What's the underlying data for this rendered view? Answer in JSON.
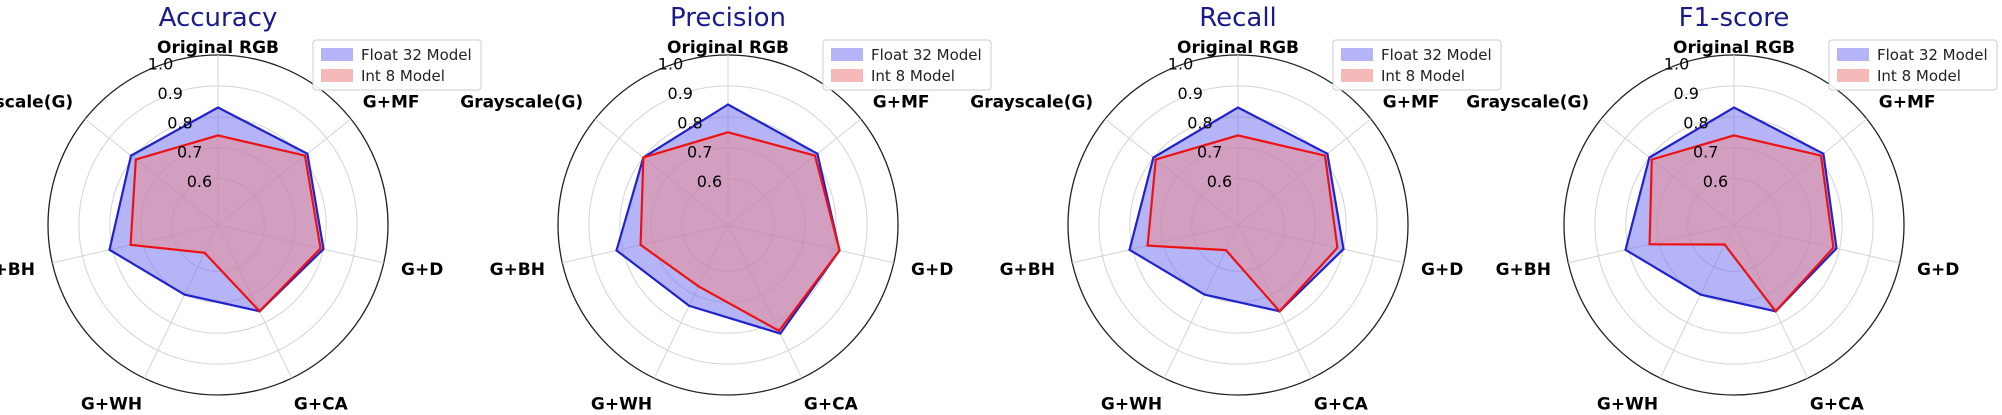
{
  "legend": {
    "float_label": "Float 32 Model",
    "int_label": "Int 8 Model"
  },
  "colors": {
    "float_line": "#2222cc",
    "float_fill": "#7777ee",
    "int_line": "#ee1111",
    "int_fill": "#f08a8a",
    "title": "#1a1a8c"
  },
  "chart_data": [
    {
      "type": "radar",
      "title": "Accuracy",
      "categories": [
        "Original RGB",
        "G+MF",
        "G+D",
        "G+CA",
        "G+WH",
        "G+BH",
        "Grayscale(G)"
      ],
      "rlim": [
        0.45,
        1.0
      ],
      "rticks": [
        "0.6",
        "0.7",
        "0.8",
        "0.9",
        "1.0"
      ],
      "grid": true,
      "series": [
        {
          "name": "Float 32 Model",
          "values": [
            0.83,
            0.82,
            0.8,
            0.76,
            0.7,
            0.81,
            0.81
          ]
        },
        {
          "name": "Int 8 Model",
          "values": [
            0.74,
            0.81,
            0.79,
            0.76,
            0.55,
            0.74,
            0.79
          ]
        }
      ]
    },
    {
      "type": "radar",
      "title": "Precision",
      "categories": [
        "Original RGB",
        "G+MF",
        "G+D",
        "G+CA",
        "G+WH",
        "G+BH",
        "Grayscale(G)"
      ],
      "rlim": [
        0.45,
        1.0
      ],
      "rticks": [
        "0.6",
        "0.7",
        "0.8",
        "0.9",
        "1.0"
      ],
      "grid": true,
      "series": [
        {
          "name": "Float 32 Model",
          "values": [
            0.84,
            0.82,
            0.82,
            0.84,
            0.74,
            0.82,
            0.8
          ]
        },
        {
          "name": "Int 8 Model",
          "values": [
            0.75,
            0.81,
            0.82,
            0.83,
            0.67,
            0.74,
            0.8
          ]
        }
      ]
    },
    {
      "type": "radar",
      "title": "Recall",
      "categories": [
        "Original RGB",
        "G+MF",
        "G+D",
        "G+CA",
        "G+WH",
        "G+BH",
        "Grayscale(G)"
      ],
      "rlim": [
        0.45,
        1.0
      ],
      "rticks": [
        "0.6",
        "0.7",
        "0.8",
        "0.9",
        "1.0"
      ],
      "grid": true,
      "series": [
        {
          "name": "Float 32 Model",
          "values": [
            0.83,
            0.82,
            0.8,
            0.76,
            0.7,
            0.81,
            0.8
          ]
        },
        {
          "name": "Int 8 Model",
          "values": [
            0.74,
            0.81,
            0.78,
            0.76,
            0.54,
            0.75,
            0.79
          ]
        }
      ]
    },
    {
      "type": "radar",
      "title": "F1-score",
      "categories": [
        "Original RGB",
        "G+MF",
        "G+D",
        "G+CA",
        "G+WH",
        "G+BH",
        "Grayscale(G)"
      ],
      "rlim": [
        0.45,
        1.0
      ],
      "rticks": [
        "0.6",
        "0.7",
        "0.8",
        "0.9",
        "1.0"
      ],
      "grid": true,
      "series": [
        {
          "name": "Float 32 Model",
          "values": [
            0.83,
            0.82,
            0.79,
            0.76,
            0.7,
            0.81,
            0.8
          ]
        },
        {
          "name": "Int 8 Model",
          "values": [
            0.74,
            0.81,
            0.78,
            0.76,
            0.52,
            0.73,
            0.79
          ]
        }
      ]
    }
  ]
}
